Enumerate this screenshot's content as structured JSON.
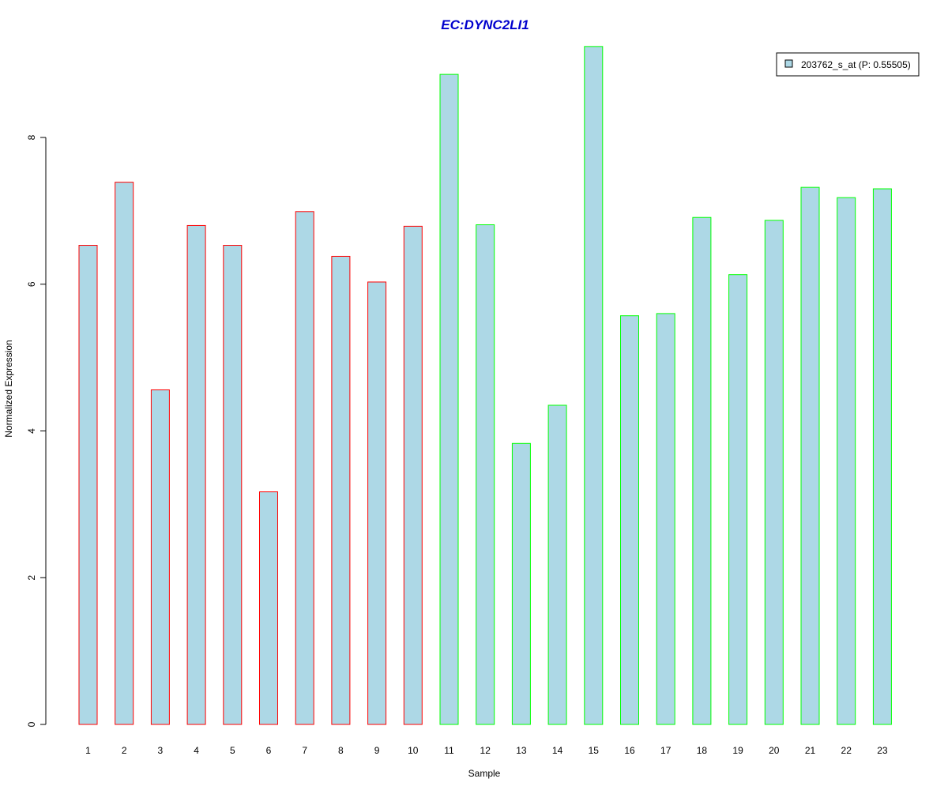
{
  "chart_data": {
    "type": "bar",
    "title": "EC:DYNC2LI1",
    "xlabel": "Sample",
    "ylabel": "Normalized Expression",
    "ylim": [
      0,
      9.4
    ],
    "yticks": [
      "0",
      "2",
      "4",
      "6",
      "8"
    ],
    "categories": [
      "1",
      "2",
      "3",
      "4",
      "5",
      "6",
      "7",
      "8",
      "9",
      "10",
      "11",
      "12",
      "13",
      "14",
      "15",
      "16",
      "17",
      "18",
      "19",
      "20",
      "21",
      "22",
      "23"
    ],
    "series": [
      {
        "name": "203762_s_at (P: 0.55505)",
        "values": [
          6.53,
          7.39,
          4.56,
          6.8,
          6.53,
          3.17,
          6.99,
          6.38,
          6.03,
          6.79,
          8.86,
          6.81,
          3.83,
          4.35,
          9.24,
          5.57,
          5.6,
          6.91,
          6.13,
          6.87,
          7.32,
          7.18,
          7.3
        ]
      }
    ],
    "group_of_sample": [
      "red",
      "red",
      "red",
      "red",
      "red",
      "red",
      "red",
      "red",
      "red",
      "red",
      "green",
      "green",
      "green",
      "green",
      "green",
      "green",
      "green",
      "green",
      "green",
      "green",
      "green",
      "green",
      "green"
    ],
    "grid": false,
    "legend_position": "top-right",
    "colors": {
      "bar_fill": "#add8e6",
      "group_red": "#ff0000",
      "group_green": "#00ff00",
      "title": "#0000cd"
    }
  }
}
